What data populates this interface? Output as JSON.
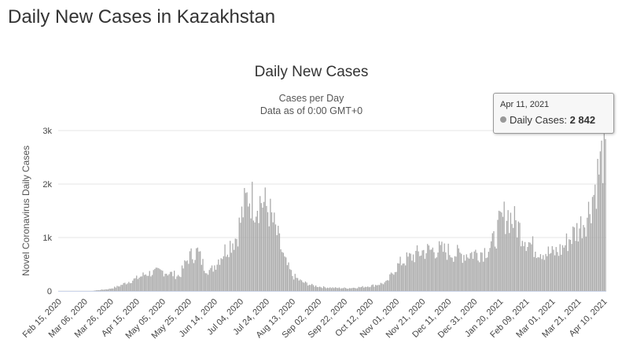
{
  "page": {
    "title": "Daily New Cases in Kazakhstan"
  },
  "tooltip": {
    "date": "Apr 11, 2021",
    "series_label": "Daily Cases:",
    "value_text": "2 842",
    "dot_color": "#999999"
  },
  "chart_data": {
    "type": "bar",
    "title": "Daily New Cases",
    "subtitle_line1": "Cases per Day",
    "subtitle_line2": "Data as of 0:00 GMT+0",
    "ylabel": "Novel Coronavirus Daily Cases",
    "xlabel": "",
    "ylim": [
      0,
      3000
    ],
    "y_ticks": [
      0,
      1000,
      2000,
      3000
    ],
    "y_tick_labels": [
      "0",
      "1k",
      "2k",
      "3k"
    ],
    "x_tick_labels": [
      "Feb 15, 2020",
      "Mar 06, 2020",
      "Mar 26, 2020",
      "Apr 15, 2020",
      "May 05, 2020",
      "May 25, 2020",
      "Jun 14, 2020",
      "Jul 04, 2020",
      "Jul 24, 2020",
      "Aug 13, 2020",
      "Sep 02, 2020",
      "Sep 22, 2020",
      "Oct 12, 2020",
      "Nov 01, 2020",
      "Nov 21, 2020",
      "Dec 11, 2020",
      "Dec 31, 2020",
      "Jan 20, 2021",
      "Feb 09, 2021",
      "Mar 01, 2021",
      "Mar 21, 2021",
      "Apr 10, 2021"
    ],
    "x_start": "2020-02-15",
    "x_end": "2021-04-11",
    "bar_color": "#aaaaaa",
    "grid": true,
    "series": [
      {
        "name": "Daily Cases",
        "anchor_points": [
          [
            "2020-02-15",
            0
          ],
          [
            "2020-03-12",
            0
          ],
          [
            "2020-03-14",
            10
          ],
          [
            "2020-03-25",
            40
          ],
          [
            "2020-04-01",
            90
          ],
          [
            "2020-04-08",
            170
          ],
          [
            "2020-04-15",
            240
          ],
          [
            "2020-04-22",
            330
          ],
          [
            "2020-04-29",
            360
          ],
          [
            "2020-05-05",
            380
          ],
          [
            "2020-05-12",
            330
          ],
          [
            "2020-05-18",
            290
          ],
          [
            "2020-05-25",
            650
          ],
          [
            "2020-06-01",
            760
          ],
          [
            "2020-06-06",
            470
          ],
          [
            "2020-06-11",
            380
          ],
          [
            "2020-06-18",
            650
          ],
          [
            "2020-06-25",
            880
          ],
          [
            "2020-07-01",
            1050
          ],
          [
            "2020-07-06",
            1550
          ],
          [
            "2020-07-10",
            1850
          ],
          [
            "2020-07-15",
            1700
          ],
          [
            "2020-07-20",
            1750
          ],
          [
            "2020-07-26",
            1550
          ],
          [
            "2020-08-01",
            1100
          ],
          [
            "2020-08-07",
            580
          ],
          [
            "2020-08-13",
            300
          ],
          [
            "2020-08-20",
            180
          ],
          [
            "2020-08-28",
            110
          ],
          [
            "2020-09-05",
            75
          ],
          [
            "2020-09-15",
            60
          ],
          [
            "2020-09-25",
            55
          ],
          [
            "2020-10-05",
            75
          ],
          [
            "2020-10-15",
            110
          ],
          [
            "2020-10-25",
            170
          ],
          [
            "2020-10-30",
            400
          ],
          [
            "2020-11-05",
            560
          ],
          [
            "2020-11-12",
            650
          ],
          [
            "2020-11-21",
            760
          ],
          [
            "2020-12-01",
            800
          ],
          [
            "2020-12-11",
            760
          ],
          [
            "2020-12-20",
            700
          ],
          [
            "2020-12-31",
            730
          ],
          [
            "2021-01-07",
            760
          ],
          [
            "2021-01-14",
            900
          ],
          [
            "2021-01-20",
            1300
          ],
          [
            "2021-01-25",
            1500
          ],
          [
            "2021-02-01",
            1300
          ],
          [
            "2021-02-09",
            1000
          ],
          [
            "2021-02-15",
            830
          ],
          [
            "2021-02-22",
            760
          ],
          [
            "2021-03-01",
            720
          ],
          [
            "2021-03-08",
            800
          ],
          [
            "2021-03-14",
            1000
          ],
          [
            "2021-03-21",
            1200
          ],
          [
            "2021-03-28",
            1450
          ],
          [
            "2021-04-03",
            2000
          ],
          [
            "2021-04-08",
            2550
          ],
          [
            "2021-04-11",
            2842
          ]
        ]
      }
    ]
  }
}
